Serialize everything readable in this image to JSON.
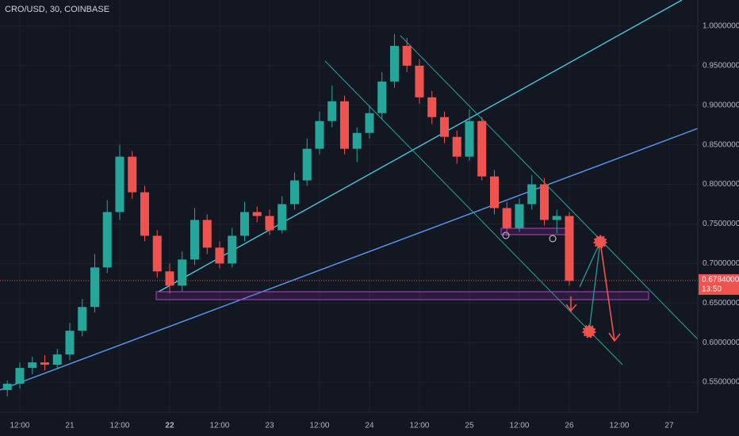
{
  "chart_data": {
    "type": "candlestick",
    "title": "CRO/USD, 30, COINBASE",
    "x": [
      9,
      12,
      15,
      18,
      21,
      24,
      27,
      30,
      33,
      36,
      39,
      42,
      45,
      48,
      51,
      54,
      57,
      60,
      63,
      66,
      69,
      72,
      75,
      78,
      81,
      84,
      87,
      90,
      93,
      96,
      99,
      102,
      105,
      108,
      111,
      114,
      117,
      120,
      123,
      126,
      129,
      132,
      135,
      138,
      141,
      144
    ],
    "open": [
      0.54,
      0.548,
      0.568,
      0.575,
      0.572,
      0.585,
      0.615,
      0.645,
      0.695,
      0.765,
      0.835,
      0.79,
      0.735,
      0.69,
      0.672,
      0.705,
      0.755,
      0.72,
      0.7,
      0.735,
      0.765,
      0.76,
      0.742,
      0.775,
      0.805,
      0.845,
      0.88,
      0.905,
      0.845,
      0.865,
      0.89,
      0.93,
      0.975,
      0.95,
      0.91,
      0.885,
      0.86,
      0.835,
      0.88,
      0.81,
      0.77,
      0.745,
      0.775,
      0.8,
      0.755,
      0.76
    ],
    "high": [
      0.552,
      0.575,
      0.582,
      0.584,
      0.592,
      0.625,
      0.655,
      0.712,
      0.78,
      0.85,
      0.842,
      0.798,
      0.742,
      0.7,
      0.715,
      0.77,
      0.762,
      0.728,
      0.745,
      0.778,
      0.772,
      0.768,
      0.785,
      0.815,
      0.858,
      0.892,
      0.925,
      0.912,
      0.872,
      0.9,
      0.942,
      0.99,
      0.985,
      0.958,
      0.918,
      0.892,
      0.868,
      0.895,
      0.885,
      0.818,
      0.778,
      0.782,
      0.812,
      0.808,
      0.768,
      0.765
    ],
    "low": [
      0.532,
      0.542,
      0.56,
      0.565,
      0.566,
      0.578,
      0.608,
      0.638,
      0.688,
      0.755,
      0.782,
      0.728,
      0.682,
      0.662,
      0.665,
      0.698,
      0.712,
      0.694,
      0.695,
      0.728,
      0.752,
      0.736,
      0.738,
      0.768,
      0.798,
      0.838,
      0.872,
      0.838,
      0.828,
      0.858,
      0.882,
      0.922,
      0.942,
      0.902,
      0.876,
      0.852,
      0.826,
      0.83,
      0.805,
      0.762,
      0.735,
      0.74,
      0.768,
      0.748,
      0.738,
      0.672
    ],
    "close": [
      0.548,
      0.568,
      0.575,
      0.572,
      0.585,
      0.615,
      0.645,
      0.695,
      0.765,
      0.835,
      0.79,
      0.735,
      0.69,
      0.672,
      0.705,
      0.755,
      0.72,
      0.7,
      0.735,
      0.765,
      0.76,
      0.742,
      0.775,
      0.805,
      0.845,
      0.88,
      0.905,
      0.845,
      0.865,
      0.89,
      0.93,
      0.975,
      0.95,
      0.91,
      0.885,
      0.86,
      0.835,
      0.88,
      0.81,
      0.77,
      0.745,
      0.775,
      0.8,
      0.755,
      0.76,
      0.678
    ],
    "up_color": "#26a69a",
    "down_color": "#ef5350",
    "xlim": [
      7.24,
      174.86
    ],
    "ylim": [
      0.512,
      1.033
    ],
    "xticks": [
      {
        "value": 12,
        "label": "12:00"
      },
      {
        "value": 24,
        "label": "21"
      },
      {
        "value": 36,
        "label": "12:00"
      },
      {
        "value": 48,
        "label": "22"
      },
      {
        "value": 60,
        "label": "12:00"
      },
      {
        "value": 72,
        "label": "23"
      },
      {
        "value": 84,
        "label": "12:00"
      },
      {
        "value": 96,
        "label": "24"
      },
      {
        "value": 108,
        "label": "12:00"
      },
      {
        "value": 120,
        "label": "25"
      },
      {
        "value": 132,
        "label": "12:00"
      },
      {
        "value": 144,
        "label": "26"
      },
      {
        "value": 156,
        "label": "12:00"
      },
      {
        "value": 168,
        "label": "27"
      }
    ],
    "yticks": [
      {
        "value": 0.55,
        "label": "0.55000000"
      },
      {
        "value": 0.6,
        "label": "0.60000000"
      },
      {
        "value": 0.65,
        "label": "0.65000000"
      },
      {
        "value": 0.7,
        "label": "0.70000000"
      },
      {
        "value": 0.75,
        "label": "0.75000000"
      },
      {
        "value": 0.8,
        "label": "0.80000000"
      },
      {
        "value": 0.85,
        "label": "0.85000000"
      },
      {
        "value": 0.9,
        "label": "0.90000000"
      },
      {
        "value": 0.95,
        "label": "0.95000000"
      },
      {
        "value": 1.0,
        "label": "1.00000000"
      }
    ],
    "grid": true,
    "last_price": {
      "value": 0.6784,
      "label": "0.67840000"
    },
    "countdown": "13:50"
  }
}
